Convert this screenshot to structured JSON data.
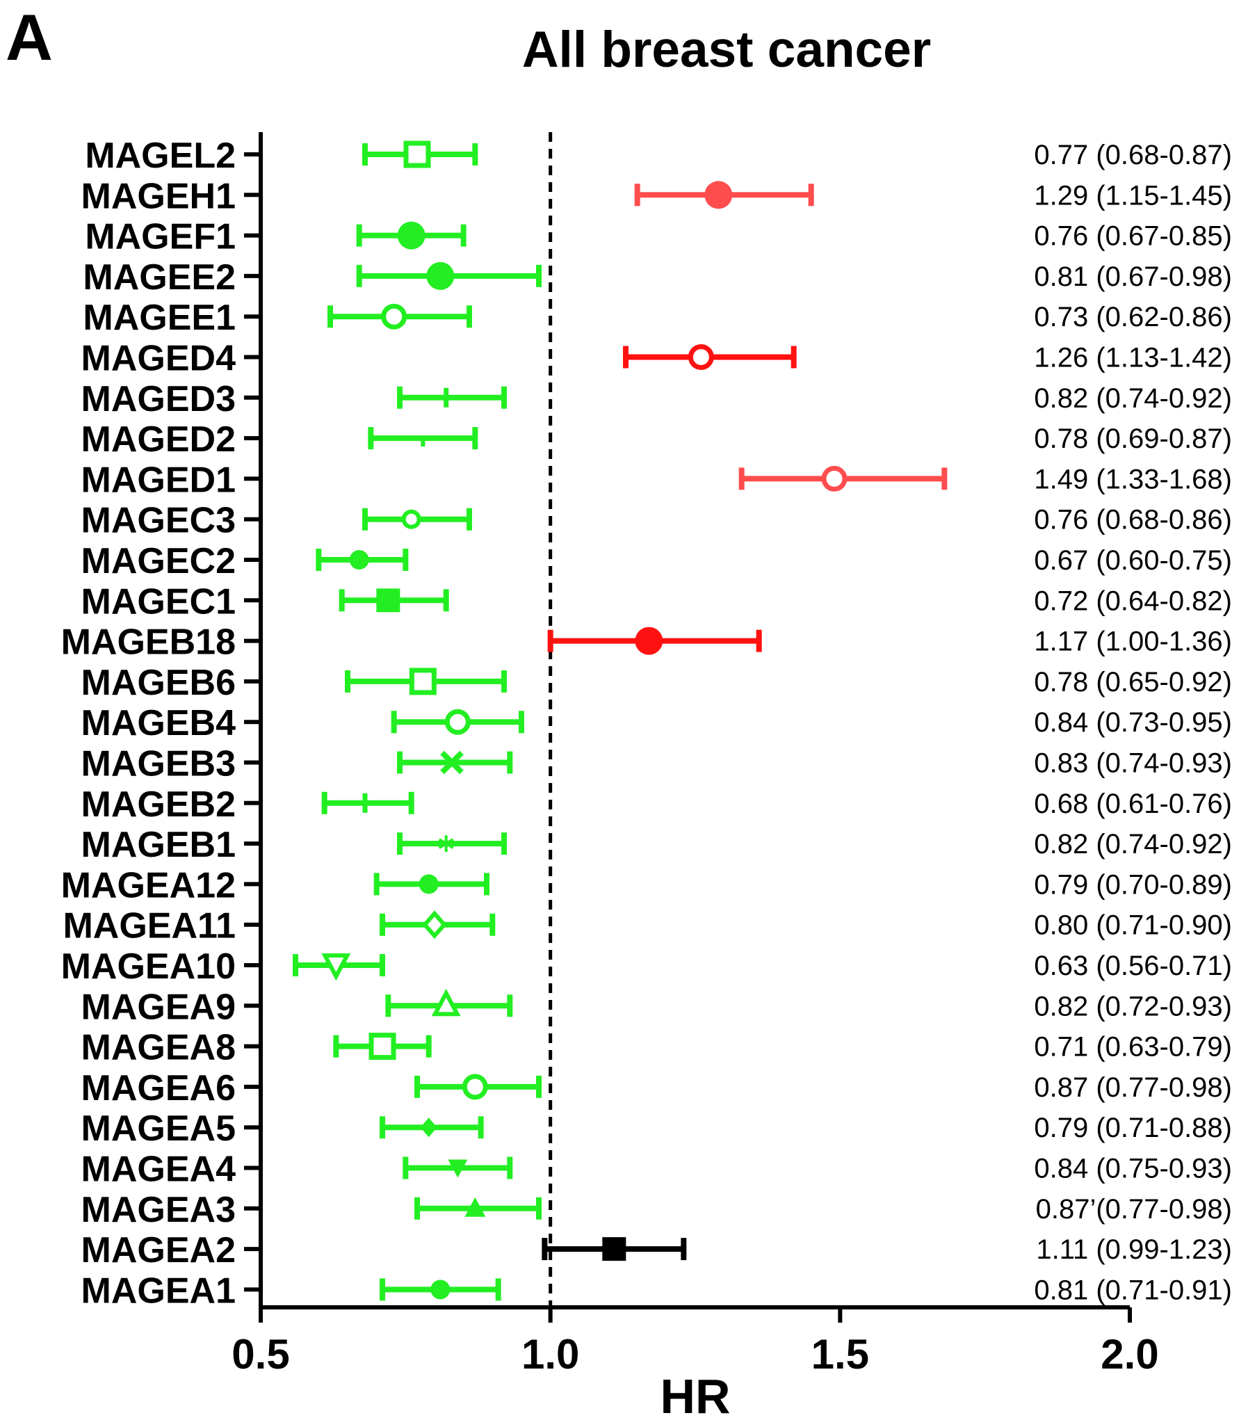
{
  "panel_label": "A",
  "colors": {
    "protective": "#22ee22",
    "risk": "#ff1111",
    "risk_light": "#ff4d4d",
    "neutral": "#000000"
  },
  "chart_data": {
    "type": "forest",
    "title": "All breast cancer",
    "xlabel": "HR",
    "xlim": [
      0.5,
      2.0
    ],
    "xticks": [
      "0.5",
      "1.0",
      "1.5",
      "2.0"
    ],
    "reference_line": 1.0,
    "rows": [
      {
        "gene": "MAGEL2",
        "hr": 0.77,
        "lo": 0.68,
        "hi": 0.87,
        "label": "0.77 (0.68-0.87)",
        "color": "protective",
        "marker": "square-open"
      },
      {
        "gene": "MAGEH1",
        "hr": 1.29,
        "lo": 1.15,
        "hi": 1.45,
        "label": "1.29 (1.15-1.45)",
        "color": "risk_light",
        "marker": "circle-big"
      },
      {
        "gene": "MAGEF1",
        "hr": 0.76,
        "lo": 0.67,
        "hi": 0.85,
        "label": "0.76 (0.67-0.85)",
        "color": "protective",
        "marker": "circle-big"
      },
      {
        "gene": "MAGEE2",
        "hr": 0.81,
        "lo": 0.67,
        "hi": 0.98,
        "label": "0.81 (0.67-0.98)",
        "color": "protective",
        "marker": "circle-big"
      },
      {
        "gene": "MAGEE1",
        "hr": 0.73,
        "lo": 0.62,
        "hi": 0.86,
        "label": "0.73 (0.62-0.86)",
        "color": "protective",
        "marker": "circle-open"
      },
      {
        "gene": "MAGED4",
        "hr": 1.26,
        "lo": 1.13,
        "hi": 1.42,
        "label": "1.26 (1.13-1.42)",
        "color": "risk",
        "marker": "circle-open"
      },
      {
        "gene": "MAGED3",
        "hr": 0.82,
        "lo": 0.74,
        "hi": 0.92,
        "label": "0.82 (0.74-0.92)",
        "color": "protective",
        "marker": "tick"
      },
      {
        "gene": "MAGED2",
        "hr": 0.78,
        "lo": 0.69,
        "hi": 0.87,
        "label": "0.78 (0.69-0.87)",
        "color": "protective",
        "marker": "tick-small"
      },
      {
        "gene": "MAGED1",
        "hr": 1.49,
        "lo": 1.33,
        "hi": 1.68,
        "label": "1.49 (1.33-1.68)",
        "color": "risk_light",
        "marker": "circle-open"
      },
      {
        "gene": "MAGEC3",
        "hr": 0.76,
        "lo": 0.68,
        "hi": 0.86,
        "label": "0.76 (0.68-0.86)",
        "color": "protective",
        "marker": "circle-open-small"
      },
      {
        "gene": "MAGEC2",
        "hr": 0.67,
        "lo": 0.6,
        "hi": 0.75,
        "label": "0.67 (0.60-0.75)",
        "color": "protective",
        "marker": "circle"
      },
      {
        "gene": "MAGEC1",
        "hr": 0.72,
        "lo": 0.64,
        "hi": 0.82,
        "label": "0.72 (0.64-0.82)",
        "color": "protective",
        "marker": "square"
      },
      {
        "gene": "MAGEB18",
        "hr": 1.17,
        "lo": 1.0,
        "hi": 1.36,
        "label": "1.17 (1.00-1.36)",
        "color": "risk",
        "marker": "circle-big"
      },
      {
        "gene": "MAGEB6",
        "hr": 0.78,
        "lo": 0.65,
        "hi": 0.92,
        "label": "0.78 (0.65-0.92)",
        "color": "protective",
        "marker": "square-open"
      },
      {
        "gene": "MAGEB4",
        "hr": 0.84,
        "lo": 0.73,
        "hi": 0.95,
        "label": "0.84 (0.73-0.95)",
        "color": "protective",
        "marker": "circle-open"
      },
      {
        "gene": "MAGEB3",
        "hr": 0.83,
        "lo": 0.74,
        "hi": 0.93,
        "label": "0.83 (0.74-0.93)",
        "color": "protective",
        "marker": "x"
      },
      {
        "gene": "MAGEB2",
        "hr": 0.68,
        "lo": 0.61,
        "hi": 0.76,
        "label": "0.68 (0.61-0.76)",
        "color": "protective",
        "marker": "tick"
      },
      {
        "gene": "MAGEB1",
        "hr": 0.82,
        "lo": 0.74,
        "hi": 0.92,
        "label": "0.82 (0.74-0.92)",
        "color": "protective",
        "marker": "star"
      },
      {
        "gene": "MAGEA12",
        "hr": 0.79,
        "lo": 0.7,
        "hi": 0.89,
        "label": "0.79 (0.70-0.89)",
        "color": "protective",
        "marker": "circle"
      },
      {
        "gene": "MAGEA11",
        "hr": 0.8,
        "lo": 0.71,
        "hi": 0.9,
        "label": "0.80 (0.71-0.90)",
        "color": "protective",
        "marker": "diamond-open"
      },
      {
        "gene": "MAGEA10",
        "hr": 0.63,
        "lo": 0.56,
        "hi": 0.71,
        "label": "0.63 (0.56-0.71)",
        "color": "protective",
        "marker": "triangle-down-open"
      },
      {
        "gene": "MAGEA9",
        "hr": 0.82,
        "lo": 0.72,
        "hi": 0.93,
        "label": "0.82 (0.72-0.93)",
        "color": "protective",
        "marker": "triangle-open"
      },
      {
        "gene": "MAGEA8",
        "hr": 0.71,
        "lo": 0.63,
        "hi": 0.79,
        "label": "0.71 (0.63-0.79)",
        "color": "protective",
        "marker": "square-open"
      },
      {
        "gene": "MAGEA6",
        "hr": 0.87,
        "lo": 0.77,
        "hi": 0.98,
        "label": "0.87 (0.77-0.98)",
        "color": "protective",
        "marker": "circle-open"
      },
      {
        "gene": "MAGEA5",
        "hr": 0.79,
        "lo": 0.71,
        "hi": 0.88,
        "label": "0.79 (0.71-0.88)",
        "color": "protective",
        "marker": "diamond"
      },
      {
        "gene": "MAGEA4",
        "hr": 0.84,
        "lo": 0.75,
        "hi": 0.93,
        "label": "0.84 (0.75-0.93)",
        "color": "protective",
        "marker": "triangle-down"
      },
      {
        "gene": "MAGEA3",
        "hr": 0.87,
        "lo": 0.77,
        "hi": 0.98,
        "label": "0.87’(0.77-0.98)",
        "color": "protective",
        "marker": "triangle"
      },
      {
        "gene": "MAGEA2",
        "hr": 1.11,
        "lo": 0.99,
        "hi": 1.23,
        "label": "1.11 (0.99-1.23)",
        "color": "neutral",
        "marker": "square"
      },
      {
        "gene": "MAGEA1",
        "hr": 0.81,
        "lo": 0.71,
        "hi": 0.91,
        "label": "0.81 (0.71-0.91)",
        "color": "protective",
        "marker": "circle"
      }
    ]
  }
}
